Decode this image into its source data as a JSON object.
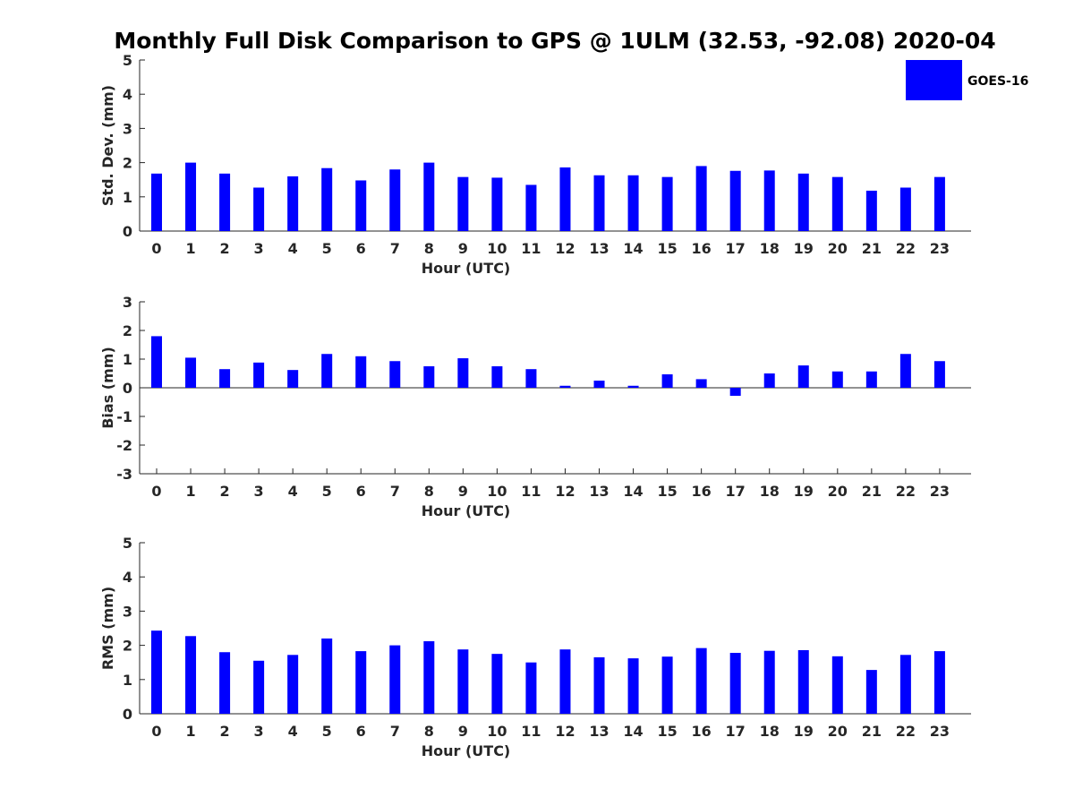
{
  "figure": {
    "title": "Monthly Full Disk Comparison to GPS @ 1ULM (32.53, -92.08) 2020-04",
    "legend": {
      "label": "GOES-16",
      "color": "#0000ff",
      "placement": "top-right"
    }
  },
  "chart_data": [
    {
      "type": "bar",
      "xlabel": "Hour (UTC)",
      "ylabel": "Std. Dev. (mm)",
      "ylim": [
        0,
        5
      ],
      "yticks": [
        0,
        1,
        2,
        3,
        4,
        5
      ],
      "categories": [
        "0",
        "1",
        "2",
        "3",
        "4",
        "5",
        "6",
        "7",
        "8",
        "9",
        "10",
        "11",
        "12",
        "13",
        "14",
        "15",
        "16",
        "17",
        "18",
        "19",
        "20",
        "21",
        "22",
        "23"
      ],
      "series": [
        {
          "name": "GOES-16",
          "color": "#0000ff",
          "values": [
            1.68,
            2.0,
            1.68,
            1.27,
            1.6,
            1.84,
            1.48,
            1.8,
            2.0,
            1.58,
            1.56,
            1.35,
            1.86,
            1.63,
            1.63,
            1.58,
            1.9,
            1.76,
            1.77,
            1.68,
            1.58,
            1.18,
            1.27,
            1.58
          ]
        }
      ]
    },
    {
      "type": "bar",
      "xlabel": "Hour (UTC)",
      "ylabel": "Bias (mm)",
      "ylim": [
        -3,
        3
      ],
      "yticks": [
        -3,
        -2,
        -1,
        0,
        1,
        2,
        3
      ],
      "categories": [
        "0",
        "1",
        "2",
        "3",
        "4",
        "5",
        "6",
        "7",
        "8",
        "9",
        "10",
        "11",
        "12",
        "13",
        "14",
        "15",
        "16",
        "17",
        "18",
        "19",
        "20",
        "21",
        "22",
        "23"
      ],
      "series": [
        {
          "name": "GOES-16",
          "color": "#0000ff",
          "values": [
            1.8,
            1.05,
            0.65,
            0.88,
            0.62,
            1.18,
            1.1,
            0.93,
            0.75,
            1.03,
            0.75,
            0.65,
            0.07,
            0.25,
            0.07,
            0.47,
            0.3,
            -0.28,
            0.5,
            0.78,
            0.57,
            0.57,
            1.18,
            0.93
          ]
        }
      ]
    },
    {
      "type": "bar",
      "xlabel": "Hour (UTC)",
      "ylabel": "RMS (mm)",
      "ylim": [
        0,
        5
      ],
      "yticks": [
        0,
        1,
        2,
        3,
        4,
        5
      ],
      "categories": [
        "0",
        "1",
        "2",
        "3",
        "4",
        "5",
        "6",
        "7",
        "8",
        "9",
        "10",
        "11",
        "12",
        "13",
        "14",
        "15",
        "16",
        "17",
        "18",
        "19",
        "20",
        "21",
        "22",
        "23"
      ],
      "series": [
        {
          "name": "GOES-16",
          "color": "#0000ff",
          "values": [
            2.43,
            2.27,
            1.8,
            1.55,
            1.72,
            2.2,
            1.83,
            2.0,
            2.12,
            1.88,
            1.75,
            1.5,
            1.88,
            1.65,
            1.62,
            1.67,
            1.92,
            1.78,
            1.84,
            1.86,
            1.68,
            1.28,
            1.72,
            1.83
          ]
        }
      ]
    }
  ]
}
